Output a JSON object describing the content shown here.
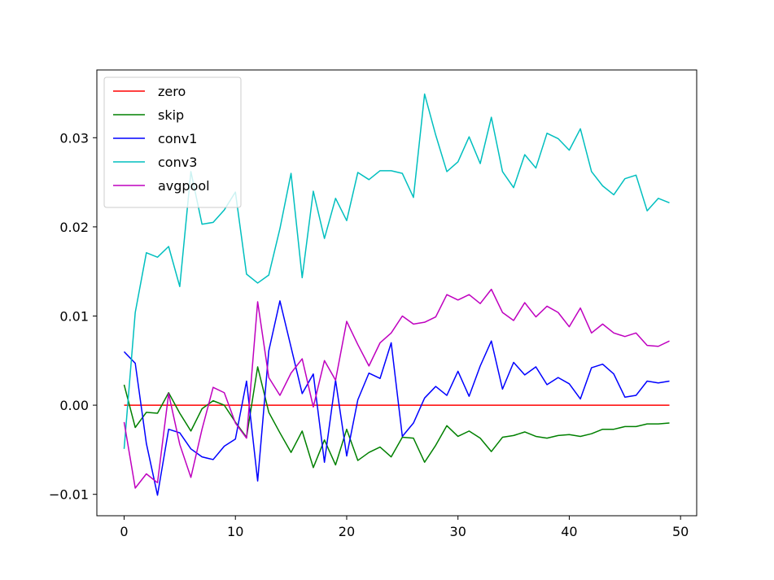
{
  "chart_data": {
    "type": "line",
    "title": "",
    "xlabel": "",
    "ylabel": "",
    "xlim": [
      -2.45,
      51.45
    ],
    "ylim": [
      -0.0124,
      0.0376
    ],
    "x_ticks": [
      0,
      10,
      20,
      30,
      40,
      50
    ],
    "x_tick_labels": [
      "0",
      "10",
      "20",
      "30",
      "40",
      "50"
    ],
    "y_ticks": [
      -0.01,
      0.0,
      0.01,
      0.02,
      0.03
    ],
    "y_tick_labels": [
      "−0.01",
      "0.00",
      "0.01",
      "0.02",
      "0.03"
    ],
    "grid": false,
    "legend_position": "top-left",
    "x": [
      0,
      1,
      2,
      3,
      4,
      5,
      6,
      7,
      8,
      9,
      10,
      11,
      12,
      13,
      14,
      15,
      16,
      17,
      18,
      19,
      20,
      21,
      22,
      23,
      24,
      25,
      26,
      27,
      28,
      29,
      30,
      31,
      32,
      33,
      34,
      35,
      36,
      37,
      38,
      39,
      40,
      41,
      42,
      43,
      44,
      45,
      46,
      47,
      48,
      49
    ],
    "series": [
      {
        "name": "zero",
        "color": "#ff0000",
        "values": [
          0,
          0,
          0,
          0,
          0,
          0,
          0,
          0,
          0,
          0,
          0,
          0,
          0,
          0,
          0,
          0,
          0,
          0,
          0,
          0,
          0,
          0,
          0,
          0,
          0,
          0,
          0,
          0,
          0,
          0,
          0,
          0,
          0,
          0,
          0,
          0,
          0,
          0,
          0,
          0,
          0,
          0,
          0,
          0,
          0,
          0,
          0,
          0,
          0,
          0
        ]
      },
      {
        "name": "skip",
        "color": "#008000",
        "values": [
          0.0023,
          -0.0025,
          -0.0008,
          -0.0009,
          0.0014,
          -0.0009,
          -0.0029,
          -0.0004,
          0.0005,
          0.0,
          -0.0019,
          -0.0036,
          0.0043,
          -0.0008,
          -0.0031,
          -0.0053,
          -0.0029,
          -0.007,
          -0.0039,
          -0.0067,
          -0.0027,
          -0.0062,
          -0.0053,
          -0.0047,
          -0.0058,
          -0.0036,
          -0.0037,
          -0.0064,
          -0.0045,
          -0.0023,
          -0.0035,
          -0.0029,
          -0.0037,
          -0.0052,
          -0.0036,
          -0.0034,
          -0.003,
          -0.0035,
          -0.0037,
          -0.0034,
          -0.0033,
          -0.0035,
          -0.0032,
          -0.0027,
          -0.0027,
          -0.0024,
          -0.0024,
          -0.0021,
          -0.0021,
          -0.002
        ]
      },
      {
        "name": "conv1",
        "color": "#0000ff",
        "values": [
          0.006,
          0.0047,
          -0.0043,
          -0.0101,
          -0.0027,
          -0.0031,
          -0.0049,
          -0.0058,
          -0.0061,
          -0.0046,
          -0.0038,
          0.0027,
          -0.0085,
          0.0061,
          0.0117,
          0.0065,
          0.0013,
          0.0035,
          -0.0064,
          0.0028,
          -0.0057,
          0.0006,
          0.0036,
          0.003,
          0.007,
          -0.0035,
          -0.002,
          0.0008,
          0.0021,
          0.0011,
          0.0038,
          0.001,
          0.0044,
          0.0072,
          0.0018,
          0.0048,
          0.0034,
          0.0043,
          0.0023,
          0.0031,
          0.0024,
          0.0007,
          0.0042,
          0.0046,
          0.0035,
          0.0009,
          0.0011,
          0.0027,
          0.0025,
          0.0027
        ]
      },
      {
        "name": "conv3",
        "color": "#00bfbf",
        "values": [
          -0.0049,
          0.0104,
          0.0171,
          0.0166,
          0.0178,
          0.0133,
          0.0262,
          0.0203,
          0.0205,
          0.0219,
          0.0239,
          0.0147,
          0.0137,
          0.0146,
          0.0198,
          0.026,
          0.0143,
          0.024,
          0.0187,
          0.0232,
          0.0207,
          0.0261,
          0.0253,
          0.0263,
          0.0263,
          0.026,
          0.0233,
          0.0349,
          0.0303,
          0.0262,
          0.0273,
          0.0301,
          0.0271,
          0.0323,
          0.0262,
          0.0244,
          0.0281,
          0.0266,
          0.0305,
          0.0299,
          0.0286,
          0.031,
          0.0262,
          0.0246,
          0.0236,
          0.0254,
          0.0258,
          0.0218,
          0.0232,
          0.0227
        ]
      },
      {
        "name": "avgpool",
        "color": "#bf00bf",
        "values": [
          -0.0019,
          -0.0093,
          -0.0077,
          -0.0087,
          0.0013,
          -0.0044,
          -0.0081,
          -0.0027,
          0.002,
          0.0014,
          -0.002,
          -0.0037,
          0.0116,
          0.0031,
          0.0011,
          0.0036,
          0.0052,
          -0.0002,
          0.005,
          0.0028,
          0.0094,
          0.0068,
          0.0044,
          0.007,
          0.0081,
          0.01,
          0.0091,
          0.0093,
          0.0099,
          0.0124,
          0.0118,
          0.0124,
          0.0114,
          0.013,
          0.0104,
          0.0095,
          0.0115,
          0.0099,
          0.0111,
          0.0104,
          0.0088,
          0.0109,
          0.0081,
          0.0091,
          0.0081,
          0.0077,
          0.0081,
          0.0067,
          0.0066,
          0.0072
        ]
      }
    ]
  }
}
